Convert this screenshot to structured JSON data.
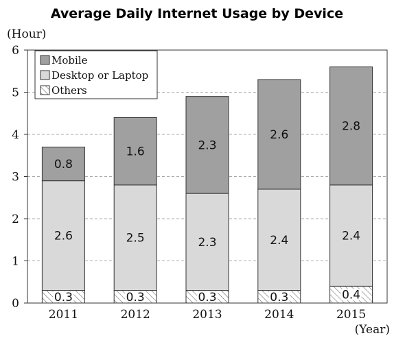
{
  "chart_data": {
    "type": "bar",
    "stacked": true,
    "title": "Average Daily Internet Usage by Device",
    "ylabel": "(Hour)",
    "xlabel": "(Year)",
    "categories": [
      "2011",
      "2012",
      "2013",
      "2014",
      "2015"
    ],
    "ylim": [
      0,
      6
    ],
    "yticks": [
      "0",
      "1",
      "2",
      "3",
      "4",
      "5",
      "6"
    ],
    "grid": true,
    "legend_position": "top-left",
    "series": [
      {
        "name": "Others",
        "values": [
          0.3,
          0.3,
          0.3,
          0.3,
          0.4
        ],
        "labels": [
          "0.3",
          "0.3",
          "0.3",
          "0.3",
          "0.4"
        ],
        "color": "#ffffff",
        "pattern": "hatch"
      },
      {
        "name": "Desktop or Laptop",
        "values": [
          2.6,
          2.5,
          2.3,
          2.4,
          2.4
        ],
        "labels": [
          "2.6",
          "2.5",
          "2.3",
          "2.4",
          "2.4"
        ],
        "color": "#d9d9d9"
      },
      {
        "name": "Mobile",
        "values": [
          0.8,
          1.6,
          2.3,
          2.6,
          2.8
        ],
        "labels": [
          "0.8",
          "1.6",
          "2.3",
          "2.6",
          "2.8"
        ],
        "color": "#a0a0a0"
      }
    ],
    "legend_order": [
      "Mobile",
      "Desktop or Laptop",
      "Others"
    ]
  }
}
